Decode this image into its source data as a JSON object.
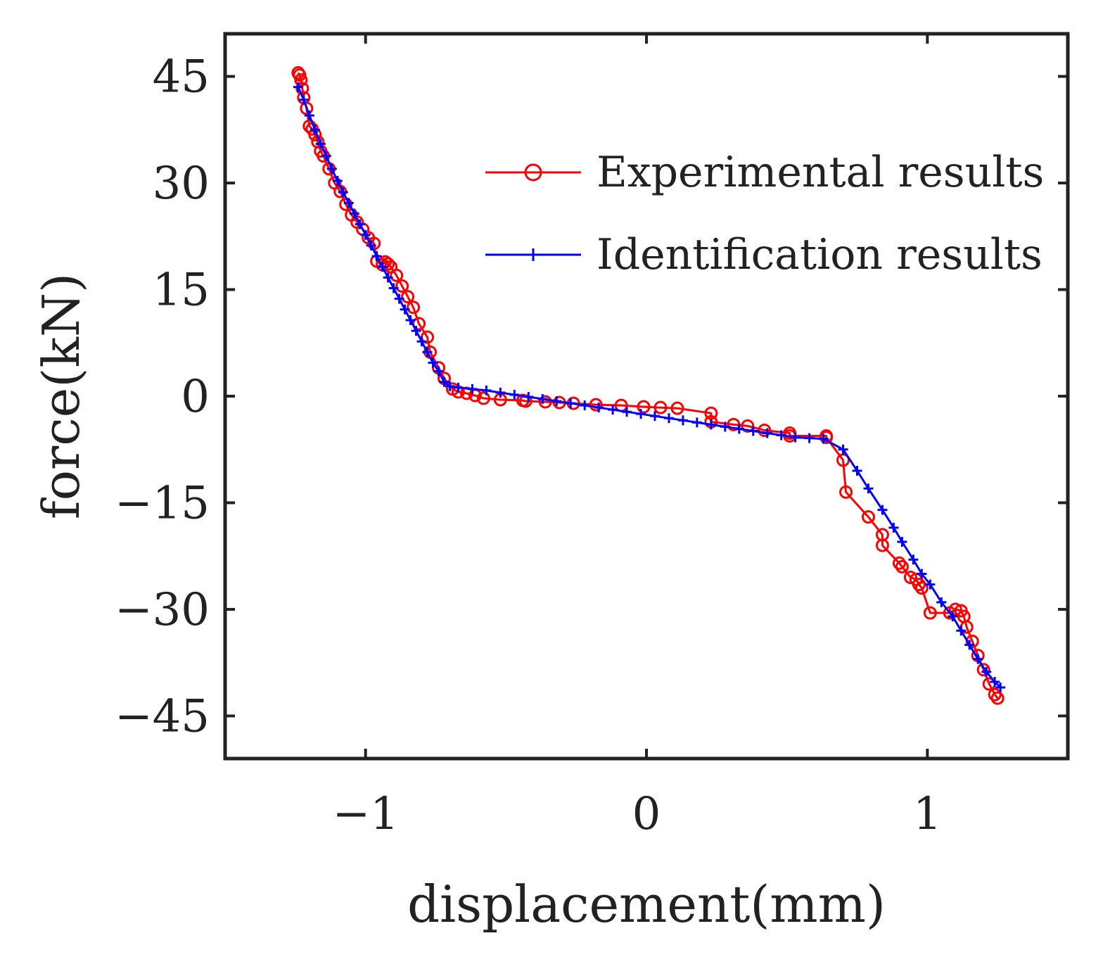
{
  "chart_data": {
    "type": "line",
    "title": "",
    "xlabel": "displacement(mm)",
    "ylabel": "force(kN)",
    "xlim": [
      -1.5,
      1.5
    ],
    "ylim": [
      -51,
      51
    ],
    "x_ticks": [
      -1,
      0,
      1
    ],
    "x_tick_labels": [
      "−1",
      "0",
      "1"
    ],
    "y_ticks": [
      45,
      30,
      15,
      0,
      -15,
      -30,
      -45
    ],
    "y_tick_labels": [
      "45",
      "30",
      "15",
      "0",
      "−15",
      "−30",
      "−45"
    ],
    "grid": false,
    "legend_position": "top-right",
    "series": [
      {
        "name": "Experimental results",
        "color": "#ff0000",
        "marker": "circle",
        "x": [
          -1.24,
          -1.235,
          -1.23,
          -1.225,
          -1.22,
          -1.21,
          -1.2,
          -1.19,
          -1.18,
          -1.17,
          -1.16,
          -1.15,
          -1.13,
          -1.11,
          -1.09,
          -1.07,
          -1.05,
          -1.03,
          -1.01,
          -0.99,
          -0.97,
          -0.96,
          -0.94,
          -0.93,
          -0.92,
          -0.91,
          -0.89,
          -0.87,
          -0.85,
          -0.83,
          -0.81,
          -0.78,
          -0.77,
          -0.74,
          -0.72,
          -0.69,
          -0.67,
          -0.64,
          -0.61,
          -0.58,
          -0.52,
          -0.44,
          -0.43,
          -0.36,
          -0.31,
          -0.26,
          -0.18,
          -0.09,
          -0.01,
          0.05,
          0.11,
          0.23,
          0.23,
          0.31,
          0.36,
          0.42,
          0.51,
          0.51,
          0.64,
          0.64,
          0.7,
          0.71,
          0.79,
          0.84,
          0.84,
          0.9,
          0.91,
          0.94,
          0.96,
          0.97,
          0.98,
          1.01,
          1.08,
          1.1,
          1.12,
          1.13,
          1.14,
          1.16,
          1.18,
          1.2,
          1.22,
          1.24,
          1.25
        ],
        "y": [
          45.5,
          45.2,
          44.5,
          43.3,
          42.0,
          40.5,
          38.0,
          37.6,
          36.8,
          35.8,
          34.5,
          33.8,
          32.0,
          30.0,
          28.8,
          27.0,
          25.5,
          24.5,
          23.5,
          22.3,
          21.5,
          19.0,
          18.5,
          18.9,
          18.6,
          18.2,
          17.0,
          15.5,
          14.0,
          12.5,
          10.2,
          8.3,
          6.2,
          4.0,
          2.5,
          1.0,
          0.6,
          0.4,
          0.1,
          -0.3,
          -0.5,
          -0.6,
          -0.7,
          -0.8,
          -0.9,
          -1.0,
          -1.2,
          -1.3,
          -1.5,
          -1.6,
          -1.7,
          -2.4,
          -3.6,
          -4.0,
          -4.2,
          -4.8,
          -5.2,
          -5.6,
          -5.6,
          -5.8,
          -9.0,
          -13.5,
          -17.0,
          -19.5,
          -21.0,
          -23.5,
          -24.0,
          -25.5,
          -25.8,
          -26.5,
          -27.0,
          -30.5,
          -30.5,
          -30.0,
          -30.2,
          -31.0,
          -32.5,
          -34.5,
          -36.5,
          -38.5,
          -40.5,
          -42.0,
          -42.5
        ]
      },
      {
        "name": "Identification results",
        "color": "#0000ff",
        "marker": "plus",
        "x": [
          -1.24,
          -1.22,
          -1.2,
          -1.18,
          -1.16,
          -1.14,
          -1.12,
          -1.1,
          -1.08,
          -1.06,
          -1.04,
          -1.02,
          -1.0,
          -0.98,
          -0.96,
          -0.94,
          -0.92,
          -0.9,
          -0.88,
          -0.86,
          -0.84,
          -0.82,
          -0.8,
          -0.78,
          -0.76,
          -0.74,
          -0.72,
          -0.7,
          -0.67,
          -0.62,
          -0.57,
          -0.52,
          -0.47,
          -0.42,
          -0.37,
          -0.32,
          -0.27,
          -0.22,
          -0.17,
          -0.12,
          -0.07,
          -0.02,
          0.03,
          0.08,
          0.13,
          0.18,
          0.23,
          0.28,
          0.33,
          0.38,
          0.43,
          0.48,
          0.53,
          0.58,
          0.63,
          0.7,
          0.75,
          0.79,
          0.84,
          0.88,
          0.91,
          0.95,
          0.98,
          1.01,
          1.05,
          1.09,
          1.12,
          1.15,
          1.18,
          1.21,
          1.24,
          1.26
        ],
        "y": [
          43.5,
          41.7,
          39.5,
          37.5,
          35.5,
          33.8,
          32.0,
          30.3,
          28.7,
          27.2,
          25.7,
          24.2,
          22.7,
          21.2,
          19.7,
          18.2,
          16.7,
          15.2,
          13.7,
          12.2,
          10.7,
          9.2,
          7.7,
          6.2,
          4.7,
          3.5,
          2.0,
          1.4,
          1.2,
          1.0,
          0.8,
          0.5,
          0.2,
          -0.1,
          -0.4,
          -0.7,
          -1.0,
          -1.3,
          -1.6,
          -1.9,
          -2.2,
          -2.5,
          -2.8,
          -3.1,
          -3.4,
          -3.7,
          -4.0,
          -4.3,
          -4.6,
          -4.9,
          -5.2,
          -5.5,
          -5.8,
          -5.9,
          -6.0,
          -7.5,
          -10.5,
          -13.0,
          -16.0,
          -18.5,
          -20.5,
          -23.0,
          -25.0,
          -26.5,
          -29.0,
          -31.0,
          -33.0,
          -35.0,
          -37.0,
          -38.8,
          -40.2,
          -41.0
        ]
      }
    ]
  }
}
